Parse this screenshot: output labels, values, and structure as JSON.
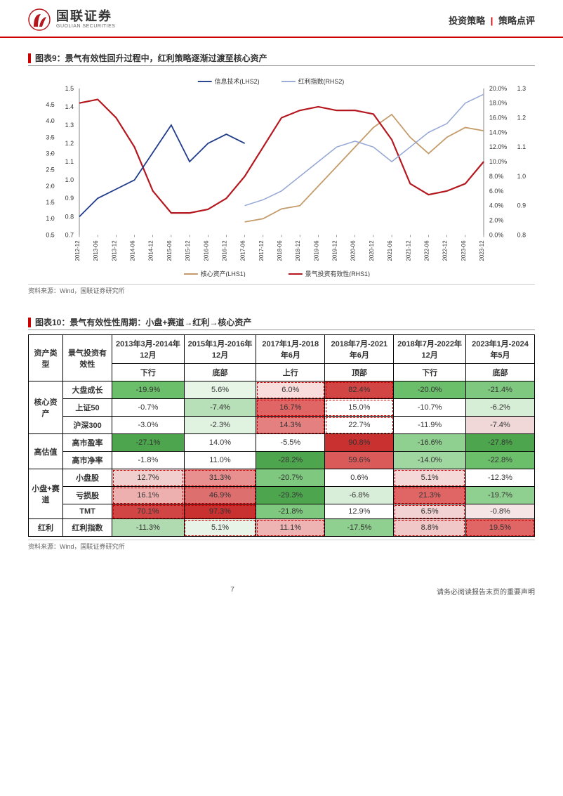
{
  "header": {
    "company_cn": "国联证券",
    "company_en": "GUOLIAN SECURITIES",
    "category_left": "投资策略",
    "category_right": "策略点评"
  },
  "chart9": {
    "title": "图表9：景气有效性回升过程中，红利策略逐渐过渡至核心资产",
    "source": "资料来源：Wind，国联证券研究所",
    "legend_top": [
      {
        "label": "信息技术(LHS2)",
        "color": "#1e3a8a",
        "style": "solid"
      },
      {
        "label": "红利指数(RHS2)",
        "color": "#93a6d4",
        "style": "solid"
      }
    ],
    "legend_bottom": [
      {
        "label": "核心资产(LHS1)",
        "color": "#c49b6a",
        "style": "solid"
      },
      {
        "label": "景气投资有效性(RHS1)",
        "color": "#b5171e",
        "style": "solid"
      }
    ],
    "x_labels": [
      "2012-12",
      "2013-06",
      "2013-12",
      "2014-06",
      "2014-12",
      "2015-06",
      "2015-12",
      "2016-06",
      "2016-12",
      "2017-06",
      "2017-12",
      "2018-06",
      "2018-12",
      "2019-06",
      "2019-12",
      "2020-06",
      "2020-12",
      "2021-06",
      "2021-12",
      "2022-06",
      "2022-12",
      "2023-06",
      "2023-12"
    ],
    "left_axis_outer": {
      "min": 0.5,
      "max": 5.0,
      "step": 0.5,
      "labels": [
        "0.5",
        "1.0",
        "1.5",
        "2.0",
        "2.5",
        "3.0",
        "3.5",
        "4.0",
        "4.5"
      ]
    },
    "left_axis_inner": {
      "min": 0.7,
      "max": 1.5,
      "step": 0.1,
      "labels": [
        "0.7",
        "0.8",
        "0.9",
        "1.0",
        "1.1",
        "1.2",
        "1.3",
        "1.4",
        "1.5"
      ]
    },
    "right_axis_outer": {
      "min": 0,
      "max": 0.2,
      "step": 0.02,
      "labels": [
        "0.0%",
        "2.0%",
        "4.0%",
        "6.0%",
        "8.0%",
        "10.0%",
        "12.0%",
        "14.0%",
        "16.0%",
        "18.0%",
        "20.0%"
      ]
    },
    "right_axis_inner": {
      "min": 0.8,
      "max": 1.3,
      "step": 0.1,
      "labels": [
        "0.8",
        "0.9",
        "1.0",
        "1.1",
        "1.2",
        "1.3"
      ]
    },
    "series_core_asset": {
      "color": "#c49b6a",
      "width": 1.8,
      "data_left1": [
        null,
        null,
        null,
        null,
        null,
        null,
        null,
        null,
        null,
        0.9,
        1.0,
        1.3,
        1.4,
        2.0,
        2.6,
        3.2,
        3.8,
        4.2,
        3.5,
        3.0,
        3.5,
        3.8,
        3.7
      ]
    },
    "series_effectiveness_rhs1": {
      "color": "#b5171e",
      "width": 2.2,
      "data_pct": [
        0.18,
        0.185,
        0.16,
        0.12,
        0.06,
        0.03,
        0.03,
        0.035,
        0.05,
        0.08,
        0.12,
        0.16,
        0.17,
        0.175,
        0.17,
        0.17,
        0.165,
        0.13,
        0.07,
        0.055,
        0.06,
        0.07,
        0.1
      ]
    },
    "series_info_tech_lhs2": {
      "color": "#1e3a8a",
      "width": 1.8,
      "data": [
        0.8,
        0.9,
        0.95,
        1.0,
        1.15,
        1.3,
        1.1,
        1.2,
        1.25,
        1.2,
        null,
        null,
        null,
        null,
        null,
        null,
        null,
        null,
        null,
        null,
        null,
        null,
        null
      ]
    },
    "series_dividend_rhs2": {
      "color": "#93a6d4",
      "width": 1.5,
      "data": [
        null,
        null,
        null,
        null,
        null,
        null,
        null,
        null,
        null,
        0.9,
        0.92,
        0.95,
        1.0,
        1.05,
        1.1,
        1.12,
        1.1,
        1.05,
        1.1,
        1.15,
        1.18,
        1.25,
        1.28
      ]
    },
    "background_color": "#ffffff",
    "label_fontsize": 8
  },
  "table10": {
    "title": "图表10：景气有效性性周期：小盘+赛道→红利→核心资产",
    "source": "资料来源：Wind，国联证券研究所",
    "col_headers_top": [
      "资产类型",
      "景气投资有效性",
      "2013年3月-2014年12月",
      "2015年1月-2016年12月",
      "2017年1月-2018年6月",
      "2018年7月-2021年6月",
      "2018年7月-2022年12月",
      "2023年1月-2024年5月"
    ],
    "phase_row": [
      "",
      "",
      "下行",
      "底部",
      "上行",
      "顶部",
      "下行",
      "底部"
    ],
    "groups": [
      {
        "group_label": "核心资产",
        "rowspan": 3,
        "rows": [
          {
            "label": "大盘成长",
            "vals": [
              {
                "v": "-19.9%",
                "bg": "#6bbf6b",
                "dash": false
              },
              {
                "v": "5.6%",
                "bg": "#e6f5e6",
                "dash": false
              },
              {
                "v": "6.0%",
                "bg": "#f9dcdc",
                "dash": true
              },
              {
                "v": "82.4%",
                "bg": "#d14545",
                "dash": true
              },
              {
                "v": "-20.0%",
                "bg": "#6bbf6b",
                "dash": false
              },
              {
                "v": "-21.4%",
                "bg": "#7fc87f",
                "dash": false
              }
            ]
          },
          {
            "label": "上证50",
            "vals": [
              {
                "v": "-0.7%",
                "bg": "#ffffff",
                "dash": false
              },
              {
                "v": "-7.4%",
                "bg": "#b8e0b8",
                "dash": false
              },
              {
                "v": "16.7%",
                "bg": "#e06666",
                "dash": true
              },
              {
                "v": "15.0%",
                "bg": "#ffffff",
                "dash": true
              },
              {
                "v": "-10.7%",
                "bg": "#ffffff",
                "dash": false
              },
              {
                "v": "-6.2%",
                "bg": "#d6eed6",
                "dash": false
              }
            ]
          },
          {
            "label": "沪深300",
            "vals": [
              {
                "v": "-3.0%",
                "bg": "#ffffff",
                "dash": false
              },
              {
                "v": "-2.3%",
                "bg": "#e0f2e0",
                "dash": false
              },
              {
                "v": "14.3%",
                "bg": "#e58080",
                "dash": true
              },
              {
                "v": "22.7%",
                "bg": "#ffffff",
                "dash": true
              },
              {
                "v": "-11.9%",
                "bg": "#ffffff",
                "dash": false
              },
              {
                "v": "-7.4%",
                "bg": "#f0d8d8",
                "dash": false
              }
            ]
          }
        ]
      },
      {
        "group_label": "高估值",
        "rowspan": 2,
        "rows": [
          {
            "label": "高市盈率",
            "vals": [
              {
                "v": "-27.1%",
                "bg": "#4da64d",
                "dash": false
              },
              {
                "v": "14.0%",
                "bg": "#ffffff",
                "dash": false
              },
              {
                "v": "-5.5%",
                "bg": "#ffffff",
                "dash": false
              },
              {
                "v": "90.8%",
                "bg": "#c93030",
                "dash": false
              },
              {
                "v": "-16.6%",
                "bg": "#8fcf8f",
                "dash": false
              },
              {
                "v": "-27.8%",
                "bg": "#4da64d",
                "dash": false
              }
            ]
          },
          {
            "label": "高市净率",
            "vals": [
              {
                "v": "-1.8%",
                "bg": "#ffffff",
                "dash": false
              },
              {
                "v": "11.0%",
                "bg": "#ffffff",
                "dash": false
              },
              {
                "v": "-28.2%",
                "bg": "#4da64d",
                "dash": false
              },
              {
                "v": "59.6%",
                "bg": "#da5a5a",
                "dash": false
              },
              {
                "v": "-14.0%",
                "bg": "#a0d6a0",
                "dash": false
              },
              {
                "v": "-22.8%",
                "bg": "#6bbf6b",
                "dash": false
              }
            ]
          }
        ]
      },
      {
        "group_label": "小盘+赛道",
        "rowspan": 3,
        "rows": [
          {
            "label": "小盘股",
            "vals": [
              {
                "v": "12.7%",
                "bg": "#f2cfcf",
                "dash": true
              },
              {
                "v": "31.3%",
                "bg": "#e89090",
                "dash": true
              },
              {
                "v": "-20.7%",
                "bg": "#7fc87f",
                "dash": false
              },
              {
                "v": "0.6%",
                "bg": "#ffffff",
                "dash": false
              },
              {
                "v": "5.1%",
                "bg": "#f5d8d8",
                "dash": true
              },
              {
                "v": "-12.3%",
                "bg": "#ffffff",
                "dash": false
              }
            ]
          },
          {
            "label": "亏损股",
            "vals": [
              {
                "v": "16.1%",
                "bg": "#eeafaf",
                "dash": true
              },
              {
                "v": "46.9%",
                "bg": "#de6f6f",
                "dash": true
              },
              {
                "v": "-29.3%",
                "bg": "#4da64d",
                "dash": false
              },
              {
                "v": "-6.8%",
                "bg": "#d8eed8",
                "dash": false
              },
              {
                "v": "21.3%",
                "bg": "#e06666",
                "dash": true
              },
              {
                "v": "-19.7%",
                "bg": "#8fcf8f",
                "dash": false
              }
            ]
          },
          {
            "label": "TMT",
            "vals": [
              {
                "v": "70.1%",
                "bg": "#d14545",
                "dash": true
              },
              {
                "v": "97.3%",
                "bg": "#c93030",
                "dash": true
              },
              {
                "v": "-21.8%",
                "bg": "#7fc87f",
                "dash": false
              },
              {
                "v": "12.9%",
                "bg": "#ffffff",
                "dash": false
              },
              {
                "v": "6.5%",
                "bg": "#f2d2d2",
                "dash": true
              },
              {
                "v": "-0.8%",
                "bg": "#f5e5e5",
                "dash": false
              }
            ]
          }
        ]
      },
      {
        "group_label": "红利",
        "rowspan": 1,
        "rows": [
          {
            "label": "红利指数",
            "vals": [
              {
                "v": "-11.3%",
                "bg": "#b0dab0",
                "dash": false
              },
              {
                "v": "5.1%",
                "bg": "#e8f4e8",
                "dash": true
              },
              {
                "v": "11.1%",
                "bg": "#eeb3b3",
                "dash": true
              },
              {
                "v": "-17.5%",
                "bg": "#8fcf8f",
                "dash": false
              },
              {
                "v": "8.8%",
                "bg": "#f0c8c8",
                "dash": true
              },
              {
                "v": "19.5%",
                "bg": "#e06666",
                "dash": true
              }
            ]
          }
        ]
      }
    ]
  },
  "footer": {
    "page": "7",
    "note": "请务必阅读报告末页的重要声明"
  }
}
